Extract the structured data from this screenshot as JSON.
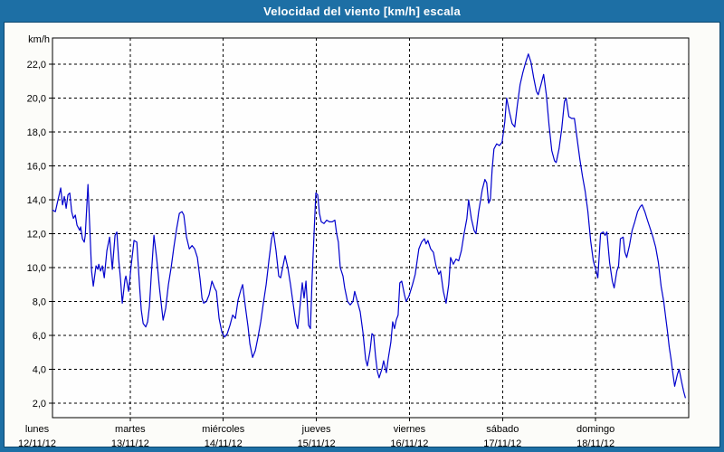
{
  "window": {
    "title": "Velocidad del viento [km/h] escala"
  },
  "colors": {
    "frame_blue": "#1d6fa5",
    "frame_edge_dark": "#0c3c60",
    "title_text": "#ffffff",
    "page_bg": "#fcfcf9",
    "plot_bg": "#fefefe",
    "grid_line": "#000000",
    "series_line": "#0000cd",
    "label_text": "#000000"
  },
  "chart_data": {
    "type": "line",
    "title": "Velocidad del viento [km/h] escala",
    "y_unit": "km/h",
    "grid": "dashed",
    "legend": "none",
    "y_axis": {
      "min": 2,
      "max": 22,
      "step": 2,
      "ylim": [
        1.1,
        23.5
      ],
      "tick_labels": [
        "2,0",
        "4,0",
        "6,0",
        "8,0",
        "10,0",
        "12,0",
        "14,0",
        "16,0",
        "18,0",
        "20,0",
        "22,0"
      ]
    },
    "x_axis": {
      "note": "t in days, 0 = lunes 00:00, 7 = end of domingo",
      "range_days": [
        0,
        7
      ],
      "days": [
        {
          "name": "lunes",
          "date": "12/11/12"
        },
        {
          "name": "martes",
          "date": "13/11/12"
        },
        {
          "name": "miércoles",
          "date": "14/11/12"
        },
        {
          "name": "jueves",
          "date": "15/11/12"
        },
        {
          "name": "viernes",
          "date": "16/11/12"
        },
        {
          "name": "sábado",
          "date": "17/11/12"
        },
        {
          "name": "domingo",
          "date": "18/11/12"
        }
      ]
    },
    "series": [
      {
        "name": "velocidad del viento",
        "unit": "km/h",
        "points": [
          [
            0.165,
            13.4
          ],
          [
            0.196,
            13.3
          ],
          [
            0.225,
            14.0
          ],
          [
            0.254,
            14.7
          ],
          [
            0.273,
            13.7
          ],
          [
            0.293,
            14.2
          ],
          [
            0.312,
            13.5
          ],
          [
            0.332,
            14.3
          ],
          [
            0.351,
            14.4
          ],
          [
            0.371,
            13.3
          ],
          [
            0.39,
            12.9
          ],
          [
            0.41,
            13.1
          ],
          [
            0.429,
            12.5
          ],
          [
            0.458,
            12.2
          ],
          [
            0.468,
            12.4
          ],
          [
            0.487,
            11.7
          ],
          [
            0.507,
            11.5
          ],
          [
            0.517,
            11.9
          ],
          [
            0.546,
            14.9
          ],
          [
            0.565,
            12.5
          ],
          [
            0.585,
            9.8
          ],
          [
            0.604,
            8.9
          ],
          [
            0.633,
            10.1
          ],
          [
            0.653,
            9.9
          ],
          [
            0.662,
            10.2
          ],
          [
            0.682,
            9.8
          ],
          [
            0.701,
            10.1
          ],
          [
            0.721,
            9.4
          ],
          [
            0.75,
            11.0
          ],
          [
            0.779,
            11.8
          ],
          [
            0.808,
            9.9
          ],
          [
            0.837,
            11.9
          ],
          [
            0.857,
            12.1
          ],
          [
            0.876,
            10.5
          ],
          [
            0.896,
            9.3
          ],
          [
            0.915,
            7.9
          ],
          [
            0.944,
            9.3
          ],
          [
            0.954,
            9.5
          ],
          [
            0.983,
            8.6
          ],
          [
            1.012,
            10.2
          ],
          [
            1.041,
            11.6
          ],
          [
            1.071,
            11.5
          ],
          [
            1.1,
            9.0
          ],
          [
            1.119,
            7.5
          ],
          [
            1.139,
            6.7
          ],
          [
            1.168,
            6.5
          ],
          [
            1.187,
            6.8
          ],
          [
            1.207,
            7.7
          ],
          [
            1.226,
            9.5
          ],
          [
            1.255,
            11.9
          ],
          [
            1.285,
            10.5
          ],
          [
            1.314,
            8.8
          ],
          [
            1.353,
            6.9
          ],
          [
            1.382,
            7.6
          ],
          [
            1.411,
            9.0
          ],
          [
            1.44,
            10.0
          ],
          [
            1.469,
            11.2
          ],
          [
            1.499,
            12.3
          ],
          [
            1.528,
            13.2
          ],
          [
            1.557,
            13.3
          ],
          [
            1.576,
            13.1
          ],
          [
            1.605,
            11.8
          ],
          [
            1.635,
            11.1
          ],
          [
            1.664,
            11.3
          ],
          [
            1.693,
            11.1
          ],
          [
            1.722,
            10.6
          ],
          [
            1.751,
            9.3
          ],
          [
            1.771,
            8.2
          ],
          [
            1.79,
            7.9
          ],
          [
            1.819,
            8.0
          ],
          [
            1.848,
            8.4
          ],
          [
            1.878,
            9.2
          ],
          [
            1.907,
            8.8
          ],
          [
            1.926,
            8.6
          ],
          [
            1.955,
            7.0
          ],
          [
            1.984,
            6.2
          ],
          [
            2.014,
            5.9
          ],
          [
            2.043,
            6.1
          ],
          [
            2.072,
            6.6
          ],
          [
            2.101,
            7.2
          ],
          [
            2.13,
            7.0
          ],
          [
            2.159,
            8.1
          ],
          [
            2.189,
            8.7
          ],
          [
            2.208,
            9.0
          ],
          [
            2.237,
            7.7
          ],
          [
            2.266,
            6.5
          ],
          [
            2.286,
            5.5
          ],
          [
            2.315,
            4.7
          ],
          [
            2.344,
            5.1
          ],
          [
            2.373,
            5.9
          ],
          [
            2.402,
            6.8
          ],
          [
            2.431,
            7.9
          ],
          [
            2.461,
            9.0
          ],
          [
            2.49,
            10.4
          ],
          [
            2.519,
            11.7
          ],
          [
            2.538,
            12.1
          ],
          [
            2.567,
            11.0
          ],
          [
            2.596,
            9.5
          ],
          [
            2.616,
            9.4
          ],
          [
            2.645,
            10.2
          ],
          [
            2.664,
            10.7
          ],
          [
            2.693,
            10.0
          ],
          [
            2.722,
            9.0
          ],
          [
            2.752,
            7.8
          ],
          [
            2.781,
            6.7
          ],
          [
            2.8,
            6.4
          ],
          [
            2.82,
            7.5
          ],
          [
            2.849,
            9.1
          ],
          [
            2.868,
            8.2
          ],
          [
            2.888,
            9.2
          ],
          [
            2.917,
            6.6
          ],
          [
            2.936,
            6.4
          ],
          [
            2.956,
            9.5
          ],
          [
            2.975,
            12.0
          ],
          [
            2.994,
            14.4
          ],
          [
            3.014,
            14.3
          ],
          [
            3.033,
            13.2
          ],
          [
            3.053,
            12.7
          ],
          [
            3.082,
            12.6
          ],
          [
            3.111,
            12.8
          ],
          [
            3.14,
            12.7
          ],
          [
            3.17,
            12.7
          ],
          [
            3.199,
            12.8
          ],
          [
            3.218,
            12.0
          ],
          [
            3.237,
            11.5
          ],
          [
            3.257,
            10.0
          ],
          [
            3.286,
            9.5
          ],
          [
            3.305,
            8.8
          ],
          [
            3.335,
            8.0
          ],
          [
            3.364,
            7.8
          ],
          [
            3.393,
            8.0
          ],
          [
            3.412,
            8.6
          ],
          [
            3.441,
            8.0
          ],
          [
            3.471,
            7.4
          ],
          [
            3.5,
            6.2
          ],
          [
            3.529,
            4.6
          ],
          [
            3.548,
            4.2
          ],
          [
            3.577,
            5.1
          ],
          [
            3.597,
            6.1
          ],
          [
            3.616,
            6.0
          ],
          [
            3.635,
            4.8
          ],
          [
            3.655,
            3.9
          ],
          [
            3.674,
            3.5
          ],
          [
            3.703,
            4.0
          ],
          [
            3.723,
            4.5
          ],
          [
            3.752,
            3.8
          ],
          [
            3.771,
            4.6
          ],
          [
            3.8,
            5.6
          ],
          [
            3.82,
            6.8
          ],
          [
            3.839,
            6.4
          ],
          [
            3.858,
            6.9
          ],
          [
            3.878,
            7.2
          ],
          [
            3.897,
            9.1
          ],
          [
            3.917,
            9.2
          ],
          [
            3.946,
            8.4
          ],
          [
            3.965,
            8.0
          ],
          [
            3.994,
            8.3
          ],
          [
            4.033,
            9.0
          ],
          [
            4.062,
            9.6
          ],
          [
            4.101,
            11.1
          ],
          [
            4.13,
            11.5
          ],
          [
            4.16,
            11.7
          ],
          [
            4.179,
            11.4
          ],
          [
            4.198,
            11.6
          ],
          [
            4.228,
            11.1
          ],
          [
            4.257,
            10.9
          ],
          [
            4.286,
            10.1
          ],
          [
            4.315,
            9.6
          ],
          [
            4.334,
            9.8
          ],
          [
            4.364,
            8.6
          ],
          [
            4.393,
            7.9
          ],
          [
            4.422,
            9.0
          ],
          [
            4.442,
            10.6
          ],
          [
            4.471,
            10.2
          ],
          [
            4.5,
            10.5
          ],
          [
            4.529,
            10.4
          ],
          [
            4.558,
            11.0
          ],
          [
            4.587,
            12.0
          ],
          [
            4.617,
            12.9
          ],
          [
            4.636,
            14.0
          ],
          [
            4.665,
            12.9
          ],
          [
            4.694,
            12.2
          ],
          [
            4.714,
            12.0
          ],
          [
            4.743,
            13.3
          ],
          [
            4.782,
            14.6
          ],
          [
            4.811,
            15.2
          ],
          [
            4.83,
            15.0
          ],
          [
            4.85,
            13.8
          ],
          [
            4.869,
            14.0
          ],
          [
            4.888,
            15.8
          ],
          [
            4.908,
            17.0
          ],
          [
            4.937,
            17.3
          ],
          [
            4.966,
            17.2
          ],
          [
            4.995,
            17.4
          ],
          [
            5.024,
            18.6
          ],
          [
            5.044,
            20.0
          ],
          [
            5.073,
            19.2
          ],
          [
            5.102,
            18.5
          ],
          [
            5.131,
            18.3
          ],
          [
            5.16,
            19.6
          ],
          [
            5.189,
            20.8
          ],
          [
            5.218,
            21.5
          ],
          [
            5.248,
            22.1
          ],
          [
            5.277,
            22.6
          ],
          [
            5.306,
            22.1
          ],
          [
            5.335,
            21.2
          ],
          [
            5.364,
            20.4
          ],
          [
            5.383,
            20.2
          ],
          [
            5.413,
            20.8
          ],
          [
            5.442,
            21.4
          ],
          [
            5.471,
            20.2
          ],
          [
            5.5,
            18.4
          ],
          [
            5.529,
            16.9
          ],
          [
            5.558,
            16.3
          ],
          [
            5.577,
            16.2
          ],
          [
            5.607,
            17.0
          ],
          [
            5.636,
            18.2
          ],
          [
            5.665,
            19.8
          ],
          [
            5.684,
            20.0
          ],
          [
            5.713,
            18.9
          ],
          [
            5.742,
            18.8
          ],
          [
            5.772,
            18.8
          ],
          [
            5.801,
            17.6
          ],
          [
            5.83,
            16.4
          ],
          [
            5.859,
            15.4
          ],
          [
            5.888,
            14.5
          ],
          [
            5.917,
            13.3
          ],
          [
            5.946,
            11.6
          ],
          [
            5.975,
            10.4
          ],
          [
            6.005,
            9.8
          ],
          [
            6.024,
            9.4
          ],
          [
            6.053,
            12.0
          ],
          [
            6.082,
            12.1
          ],
          [
            6.102,
            11.9
          ],
          [
            6.121,
            12.1
          ],
          [
            6.15,
            10.3
          ],
          [
            6.179,
            9.2
          ],
          [
            6.199,
            8.8
          ],
          [
            6.228,
            9.8
          ],
          [
            6.247,
            10.1
          ],
          [
            6.266,
            11.7
          ],
          [
            6.296,
            11.8
          ],
          [
            6.315,
            10.9
          ],
          [
            6.334,
            10.6
          ],
          [
            6.363,
            11.3
          ],
          [
            6.392,
            12.2
          ],
          [
            6.421,
            12.7
          ],
          [
            6.451,
            13.3
          ],
          [
            6.48,
            13.6
          ],
          [
            6.499,
            13.7
          ],
          [
            6.528,
            13.3
          ],
          [
            6.557,
            12.8
          ],
          [
            6.587,
            12.3
          ],
          [
            6.616,
            11.8
          ],
          [
            6.645,
            11.2
          ],
          [
            6.674,
            10.3
          ],
          [
            6.703,
            8.9
          ],
          [
            6.732,
            8.0
          ],
          [
            6.752,
            7.1
          ],
          [
            6.771,
            6.3
          ],
          [
            6.791,
            5.3
          ],
          [
            6.81,
            4.6
          ],
          [
            6.829,
            3.8
          ],
          [
            6.849,
            3.0
          ],
          [
            6.878,
            3.7
          ],
          [
            6.897,
            4.0
          ],
          [
            6.926,
            3.2
          ],
          [
            6.946,
            2.7
          ],
          [
            6.965,
            2.3
          ]
        ]
      }
    ]
  }
}
